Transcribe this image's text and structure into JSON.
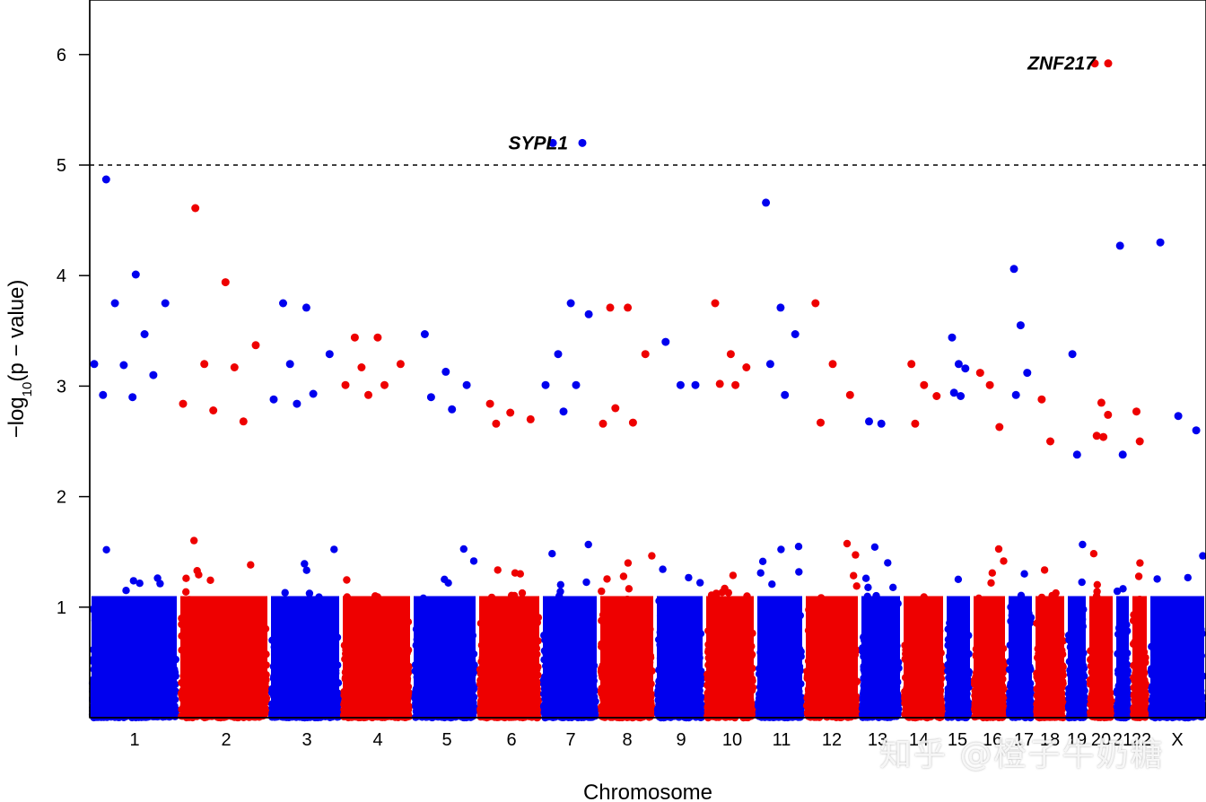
{
  "chart_data": {
    "type": "scatter",
    "subtype": "manhattan",
    "xlabel": "Chromosome",
    "ylabel": "−log10(p − value)",
    "ylim": [
      0,
      6.5
    ],
    "yticks": [
      1,
      2,
      3,
      4,
      5,
      6
    ],
    "threshold": 5,
    "threshold_style": "dashed",
    "colors": {
      "odd": "#0000ee",
      "even": "#ee0000"
    },
    "chromosomes": [
      {
        "label": "1",
        "color": "blue",
        "max": 4.87,
        "tops": [
          4.87,
          4.01,
          3.75,
          3.75,
          3.47,
          3.2,
          3.19,
          3.1,
          2.92,
          2.9
        ]
      },
      {
        "label": "2",
        "color": "red",
        "max": 4.61,
        "tops": [
          4.61,
          3.94,
          3.37,
          3.2,
          3.17,
          2.84,
          2.78,
          2.68
        ]
      },
      {
        "label": "3",
        "color": "blue",
        "max": 3.75,
        "tops": [
          3.75,
          3.71,
          3.29,
          3.2,
          2.93,
          2.88,
          2.84
        ]
      },
      {
        "label": "4",
        "color": "red",
        "max": 3.44,
        "tops": [
          3.44,
          3.44,
          3.2,
          3.17,
          3.01,
          3.01,
          2.92
        ]
      },
      {
        "label": "5",
        "color": "blue",
        "max": 3.47,
        "tops": [
          3.47,
          3.13,
          3.01,
          2.9,
          2.79
        ]
      },
      {
        "label": "6",
        "color": "red",
        "max": 2.84,
        "tops": [
          2.84,
          2.76,
          2.7,
          2.66
        ]
      },
      {
        "label": "7",
        "color": "blue",
        "max": 5.2,
        "tops": [
          5.2,
          3.75,
          3.65,
          3.29,
          3.01,
          3.01,
          2.77
        ]
      },
      {
        "label": "8",
        "color": "red",
        "max": 3.71,
        "tops": [
          3.71,
          3.71,
          3.29,
          2.8,
          2.67,
          2.66
        ]
      },
      {
        "label": "9",
        "color": "blue",
        "max": 3.4,
        "tops": [
          3.4,
          3.01,
          3.01
        ]
      },
      {
        "label": "10",
        "color": "red",
        "max": 3.75,
        "tops": [
          3.75,
          3.29,
          3.17,
          3.02,
          3.01
        ]
      },
      {
        "label": "11",
        "color": "blue",
        "max": 4.66,
        "tops": [
          4.66,
          3.71,
          3.47,
          3.2,
          2.92
        ]
      },
      {
        "label": "12",
        "color": "red",
        "max": 3.75,
        "tops": [
          3.75,
          3.2,
          2.92,
          2.67
        ]
      },
      {
        "label": "13",
        "color": "blue",
        "max": 2.68,
        "tops": [
          2.68,
          2.66
        ]
      },
      {
        "label": "14",
        "color": "red",
        "max": 3.2,
        "tops": [
          3.2,
          3.01,
          2.91,
          2.66
        ]
      },
      {
        "label": "15",
        "color": "blue",
        "max": 3.44,
        "tops": [
          3.44,
          3.2,
          3.16,
          2.94,
          2.91
        ]
      },
      {
        "label": "16",
        "color": "red",
        "max": 3.12,
        "tops": [
          3.12,
          3.01,
          2.63
        ]
      },
      {
        "label": "17",
        "color": "blue",
        "max": 4.06,
        "tops": [
          4.06,
          3.55,
          3.12,
          2.92
        ]
      },
      {
        "label": "18",
        "color": "red",
        "max": 2.88,
        "tops": [
          2.88,
          2.5
        ]
      },
      {
        "label": "19",
        "color": "blue",
        "max": 3.29,
        "tops": [
          3.29,
          2.38
        ]
      },
      {
        "label": "20",
        "color": "red",
        "max": 5.92,
        "tops": [
          5.92,
          2.85,
          2.74,
          2.55,
          2.54
        ]
      },
      {
        "label": "21",
        "color": "blue",
        "max": 4.27,
        "tops": [
          4.27,
          2.38
        ]
      },
      {
        "label": "22",
        "color": "red",
        "max": 2.77,
        "tops": [
          2.77,
          2.5
        ]
      },
      {
        "label": "X",
        "color": "blue",
        "max": 4.3,
        "tops": [
          4.3,
          2.73,
          2.6
        ]
      }
    ],
    "annotations": [
      {
        "text": "SYPL1",
        "chromosome": "7",
        "y": 5.2
      },
      {
        "text": "ZNF217",
        "chromosome": "20",
        "y": 5.92
      }
    ]
  },
  "watermark_text": "知乎 @橙子牛奶糖"
}
